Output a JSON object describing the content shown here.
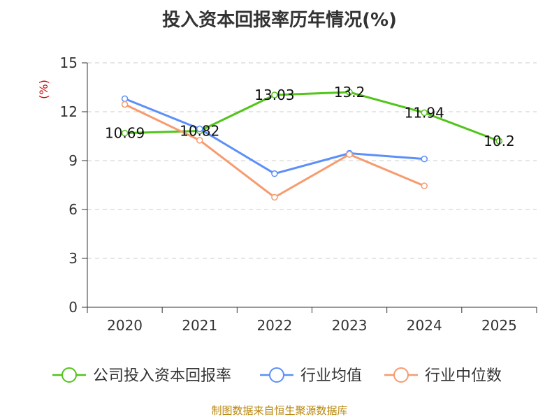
{
  "chart_data": {
    "type": "line",
    "title": "投入资本回报率历年情况(%)",
    "ylabel": "(%)",
    "xlabel": "",
    "categories": [
      "2020",
      "2021",
      "2022",
      "2023",
      "2024",
      "2025"
    ],
    "ylim": [
      0,
      15
    ],
    "yticks": [
      0,
      3,
      6,
      9,
      12,
      15
    ],
    "grid": true,
    "legend_position": "bottom",
    "series": [
      {
        "name": "公司投入资本回报率",
        "color": "#52c41a",
        "values": [
          10.69,
          10.82,
          13.03,
          13.2,
          11.94,
          10.2
        ],
        "labels": [
          "10.69",
          "10.82",
          "13.03",
          "13.2",
          "11.94",
          "10.2"
        ]
      },
      {
        "name": "行业均值",
        "color": "#5b8ff9",
        "values": [
          12.8,
          10.95,
          8.2,
          9.45,
          9.1,
          null
        ]
      },
      {
        "name": "行业中位数",
        "color": "#f79b6e",
        "values": [
          12.45,
          10.25,
          6.75,
          9.38,
          7.45,
          null
        ]
      }
    ]
  },
  "footer": {
    "source": "制图数据来自恒生聚源数据库"
  }
}
